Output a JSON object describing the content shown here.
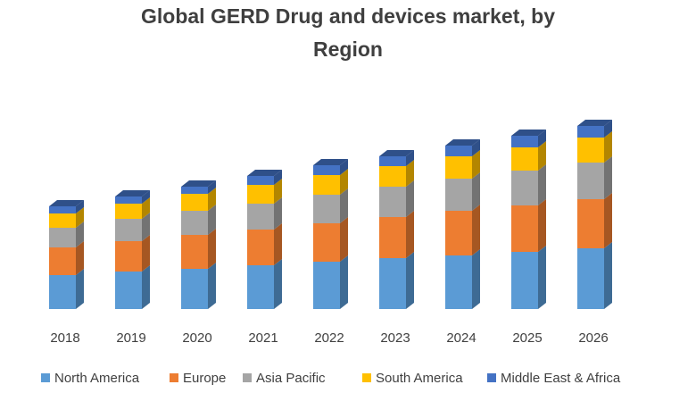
{
  "chart_data": {
    "type": "bar",
    "stacked": true,
    "three_d": true,
    "title": "Global GERD Drug and devices market, by Region",
    "title_lines": [
      "Global GERD Drug and devices market, by",
      "Region"
    ],
    "xlabel": "",
    "ylabel": "",
    "y_axis_shown": false,
    "grid": false,
    "legend_position": "bottom",
    "units_note": "relative (no axis values shown)",
    "categories": [
      "2018",
      "2019",
      "2020",
      "2021",
      "2022",
      "2023",
      "2024",
      "2025",
      "2026"
    ],
    "series": [
      {
        "name": "North America",
        "color": "#5b9bd5",
        "side": "#3e6b94",
        "values": [
          38,
          42,
          45,
          49,
          53,
          57,
          60,
          64,
          68
        ]
      },
      {
        "name": "Europe",
        "color": "#ed7d31",
        "side": "#a65722",
        "values": [
          31,
          34,
          38,
          40,
          43,
          46,
          50,
          52,
          55
        ]
      },
      {
        "name": "Asia Pacific",
        "color": "#a5a5a5",
        "side": "#737373",
        "values": [
          22,
          25,
          27,
          29,
          32,
          34,
          36,
          39,
          41
        ]
      },
      {
        "name": "South America",
        "color": "#ffc000",
        "side": "#b38600",
        "values": [
          16,
          17,
          19,
          21,
          22,
          23,
          25,
          26,
          28
        ]
      },
      {
        "name": "Middle East & Africa",
        "color": "#4472c4",
        "side": "#2f5089",
        "values": [
          8,
          8,
          8,
          10,
          11,
          11,
          12,
          13,
          13
        ]
      }
    ]
  }
}
